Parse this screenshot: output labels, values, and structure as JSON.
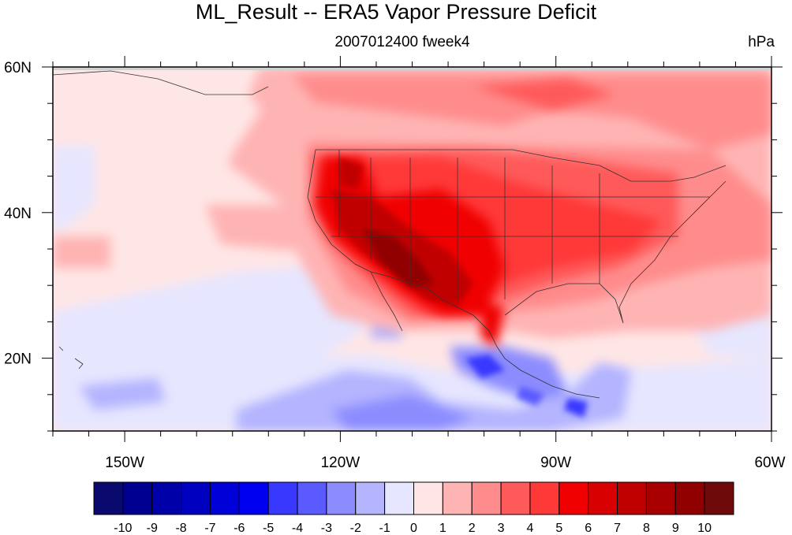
{
  "title": "ML_Result -- ERA5 Vapor Pressure Deficit",
  "subtitle": "2007012400 fweek4",
  "units": "hPa",
  "map": {
    "lon_range": [
      -160,
      -60
    ],
    "lat_range": [
      10,
      60
    ],
    "lon_ticks": [
      {
        "value": -150,
        "label": "150W"
      },
      {
        "value": -120,
        "label": "120W"
      },
      {
        "value": -90,
        "label": "90W"
      },
      {
        "value": -60,
        "label": "60W"
      }
    ],
    "lat_ticks": [
      {
        "value": 20,
        "label": "20N"
      },
      {
        "value": 40,
        "label": "40N"
      },
      {
        "value": 60,
        "label": "60N"
      }
    ],
    "background_anomaly_level": 0.5
  },
  "colorbar": {
    "labels": [
      "-10",
      "-9",
      "-8",
      "-7",
      "-6",
      "-5",
      "-4",
      "-3",
      "-2",
      "-1",
      "0",
      "1",
      "2",
      "3",
      "4",
      "5",
      "6",
      "7",
      "8",
      "9",
      "10"
    ],
    "colors": [
      "#0a0a6e",
      "#000090",
      "#0000a8",
      "#0000c0",
      "#0000d8",
      "#0000f0",
      "#3838ff",
      "#5a5aff",
      "#8c8cff",
      "#b4b4ff",
      "#e6e6ff",
      "#ffe6e6",
      "#ffb4b4",
      "#ff8c8c",
      "#ff5a5a",
      "#ff3838",
      "#f00000",
      "#d80000",
      "#c00000",
      "#a80000",
      "#900000",
      "#6e0a0a"
    ]
  }
}
